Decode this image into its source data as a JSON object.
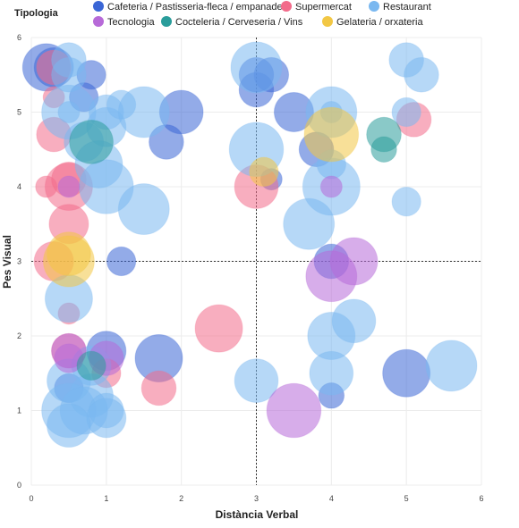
{
  "chart_data": {
    "type": "scatter",
    "subtype": "bubble",
    "legend_title": "Tipologia",
    "legend_position": "top",
    "xlabel": "Distància Verbal",
    "ylabel": "Pes Visual",
    "xlim": [
      0,
      6
    ],
    "ylim": [
      0,
      6
    ],
    "xticks": [
      0,
      1,
      2,
      3,
      4,
      5,
      6
    ],
    "yticks": [
      0,
      1,
      2,
      3,
      4,
      5,
      6
    ],
    "grid": true,
    "reference_lines": {
      "x": 3,
      "y": 3,
      "style": "dotted"
    },
    "series": [
      {
        "name": "Cafeteria / Pastisseria-fleca / empanades",
        "color": "#3a66d6",
        "points": [
          {
            "x": 0.2,
            "y": 5.6,
            "size": 6
          },
          {
            "x": 0.3,
            "y": 5.6,
            "size": 4
          },
          {
            "x": 0.8,
            "y": 5.5,
            "size": 2
          },
          {
            "x": 0.7,
            "y": 5.2,
            "size": 2
          },
          {
            "x": 2.0,
            "y": 5.0,
            "size": 5
          },
          {
            "x": 1.8,
            "y": 4.6,
            "size": 3
          },
          {
            "x": 1.2,
            "y": 3.0,
            "size": 2
          },
          {
            "x": 1.7,
            "y": 1.7,
            "size": 6
          },
          {
            "x": 1.0,
            "y": 1.8,
            "size": 4
          },
          {
            "x": 0.5,
            "y": 1.3,
            "size": 2
          },
          {
            "x": 3.0,
            "y": 5.5,
            "size": 3
          },
          {
            "x": 3.2,
            "y": 5.5,
            "size": 3
          },
          {
            "x": 3.0,
            "y": 5.3,
            "size": 3
          },
          {
            "x": 3.5,
            "y": 5.0,
            "size": 4
          },
          {
            "x": 3.8,
            "y": 4.5,
            "size": 3
          },
          {
            "x": 3.2,
            "y": 4.1,
            "size": 1
          },
          {
            "x": 4.0,
            "y": 3.0,
            "size": 3
          },
          {
            "x": 4.0,
            "y": 1.2,
            "size": 1.5
          },
          {
            "x": 5.0,
            "y": 1.5,
            "size": 6
          }
        ]
      },
      {
        "name": "Supermercat",
        "color": "#f26b8a",
        "points": [
          {
            "x": 0.3,
            "y": 5.6,
            "size": 3
          },
          {
            "x": 0.3,
            "y": 5.2,
            "size": 1
          },
          {
            "x": 0.3,
            "y": 4.7,
            "size": 3
          },
          {
            "x": 0.2,
            "y": 4.0,
            "size": 1
          },
          {
            "x": 0.5,
            "y": 4.0,
            "size": 6
          },
          {
            "x": 0.5,
            "y": 4.1,
            "size": 3
          },
          {
            "x": 0.5,
            "y": 3.5,
            "size": 4
          },
          {
            "x": 0.3,
            "y": 3.0,
            "size": 4
          },
          {
            "x": 0.5,
            "y": 2.3,
            "size": 1
          },
          {
            "x": 0.5,
            "y": 1.8,
            "size": 3
          },
          {
            "x": 1.0,
            "y": 1.5,
            "size": 2
          },
          {
            "x": 1.7,
            "y": 1.3,
            "size": 3
          },
          {
            "x": 2.5,
            "y": 2.1,
            "size": 6
          },
          {
            "x": 3.0,
            "y": 4.0,
            "size": 5
          },
          {
            "x": 5.1,
            "y": 4.9,
            "size": 3
          }
        ]
      },
      {
        "name": "Restaurant",
        "color": "#7ab8f0",
        "points": [
          {
            "x": 0.5,
            "y": 5.7,
            "size": 3
          },
          {
            "x": 0.5,
            "y": 5.5,
            "size": 3
          },
          {
            "x": 0.5,
            "y": 5.0,
            "size": 8
          },
          {
            "x": 0.5,
            "y": 5.0,
            "size": 1
          },
          {
            "x": 0.7,
            "y": 4.6,
            "size": 4
          },
          {
            "x": 1.0,
            "y": 4.8,
            "size": 4
          },
          {
            "x": 1.0,
            "y": 5.0,
            "size": 3
          },
          {
            "x": 1.2,
            "y": 5.1,
            "size": 2
          },
          {
            "x": 1.5,
            "y": 5.0,
            "size": 7
          },
          {
            "x": 0.9,
            "y": 4.3,
            "size": 6
          },
          {
            "x": 1.0,
            "y": 4.0,
            "size": 8
          },
          {
            "x": 1.5,
            "y": 3.7,
            "size": 7
          },
          {
            "x": 0.5,
            "y": 2.5,
            "size": 6
          },
          {
            "x": 0.8,
            "y": 1.6,
            "size": 4
          },
          {
            "x": 0.5,
            "y": 1.4,
            "size": 5
          },
          {
            "x": 0.8,
            "y": 1.2,
            "size": 5
          },
          {
            "x": 0.5,
            "y": 1.0,
            "size": 8
          },
          {
            "x": 0.7,
            "y": 1.0,
            "size": 6
          },
          {
            "x": 1.0,
            "y": 1.0,
            "size": 3
          },
          {
            "x": 1.0,
            "y": 0.9,
            "size": 4
          },
          {
            "x": 0.5,
            "y": 0.8,
            "size": 5
          },
          {
            "x": 3.0,
            "y": 5.6,
            "size": 7
          },
          {
            "x": 3.0,
            "y": 4.5,
            "size": 8
          },
          {
            "x": 4.0,
            "y": 5.0,
            "size": 7
          },
          {
            "x": 4.0,
            "y": 5.0,
            "size": 1
          },
          {
            "x": 4.0,
            "y": 4.0,
            "size": 9
          },
          {
            "x": 4.0,
            "y": 4.3,
            "size": 2
          },
          {
            "x": 3.7,
            "y": 3.5,
            "size": 7
          },
          {
            "x": 4.0,
            "y": 2.0,
            "size": 6
          },
          {
            "x": 4.3,
            "y": 2.2,
            "size": 5
          },
          {
            "x": 4.0,
            "y": 1.5,
            "size": 5
          },
          {
            "x": 3.0,
            "y": 1.4,
            "size": 5
          },
          {
            "x": 5.0,
            "y": 5.7,
            "size": 3
          },
          {
            "x": 5.2,
            "y": 5.5,
            "size": 3
          },
          {
            "x": 5.0,
            "y": 5.0,
            "size": 2
          },
          {
            "x": 5.0,
            "y": 3.8,
            "size": 2
          },
          {
            "x": 5.6,
            "y": 1.6,
            "size": 7
          }
        ]
      },
      {
        "name": "Tecnologia",
        "color": "#b76ad8",
        "points": [
          {
            "x": 0.5,
            "y": 4.0,
            "size": 1
          },
          {
            "x": 0.5,
            "y": 1.8,
            "size": 3
          },
          {
            "x": 0.5,
            "y": 1.7,
            "size": 2
          },
          {
            "x": 1.0,
            "y": 1.7,
            "size": 3
          },
          {
            "x": 3.5,
            "y": 1.0,
            "size": 8
          },
          {
            "x": 4.3,
            "y": 3.0,
            "size": 6
          },
          {
            "x": 4.0,
            "y": 2.8,
            "size": 7
          },
          {
            "x": 4.0,
            "y": 4.0,
            "size": 1
          }
        ]
      },
      {
        "name": "Cocteleria / Cerveseria / Vins",
        "color": "#2a9d9b",
        "points": [
          {
            "x": 0.8,
            "y": 4.6,
            "size": 5
          },
          {
            "x": 4.7,
            "y": 4.7,
            "size": 3
          },
          {
            "x": 4.7,
            "y": 4.5,
            "size": 1.5
          },
          {
            "x": 0.8,
            "y": 1.6,
            "size": 2
          }
        ]
      },
      {
        "name": "Gelateria / orxateria",
        "color": "#f2c744",
        "points": [
          {
            "x": 0.5,
            "y": 3.1,
            "size": 5
          },
          {
            "x": 0.5,
            "y": 3.0,
            "size": 7
          },
          {
            "x": 3.1,
            "y": 4.2,
            "size": 2
          },
          {
            "x": 4.0,
            "y": 4.7,
            "size": 8
          }
        ]
      }
    ]
  }
}
